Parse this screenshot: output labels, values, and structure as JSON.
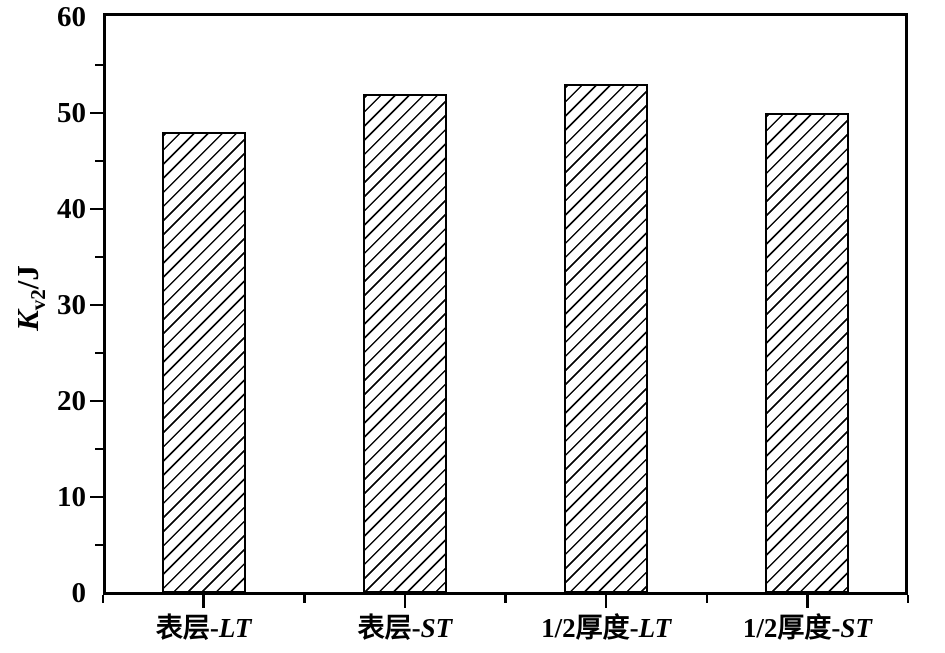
{
  "figure": {
    "background_color": "#ffffff",
    "axis_color": "#000000",
    "title": ""
  },
  "chart_data": {
    "type": "bar",
    "categories": [
      "表层-LT",
      "表层-ST",
      "1/2厚度-LT",
      "1/2厚度-ST"
    ],
    "category_parts": [
      {
        "prefix": "表层-",
        "suffix": "LT"
      },
      {
        "prefix": "表层-",
        "suffix": "ST"
      },
      {
        "prefix": "1/2厚度-",
        "suffix": "LT"
      },
      {
        "prefix": "1/2厚度-",
        "suffix": "ST"
      }
    ],
    "values": [
      48,
      52,
      53,
      50
    ],
    "title": "",
    "xlabel": "",
    "ylabel": "Kv2/J",
    "ylabel_parts": {
      "symbol": "K",
      "subscript": "v2",
      "unit": "/J"
    },
    "ylim": [
      0,
      60
    ],
    "yticks": [
      0,
      10,
      20,
      30,
      40,
      50,
      60
    ],
    "ytick_labels": [
      "0",
      "10",
      "20",
      "30",
      "40",
      "50",
      "60"
    ],
    "ytick_minor": [
      5,
      15,
      25,
      35,
      45,
      55
    ],
    "grid": false,
    "legend": false,
    "bar_style": {
      "fill_color": "#ffffff",
      "edge_color": "#000000",
      "hatch": "diagonal-forward"
    }
  }
}
